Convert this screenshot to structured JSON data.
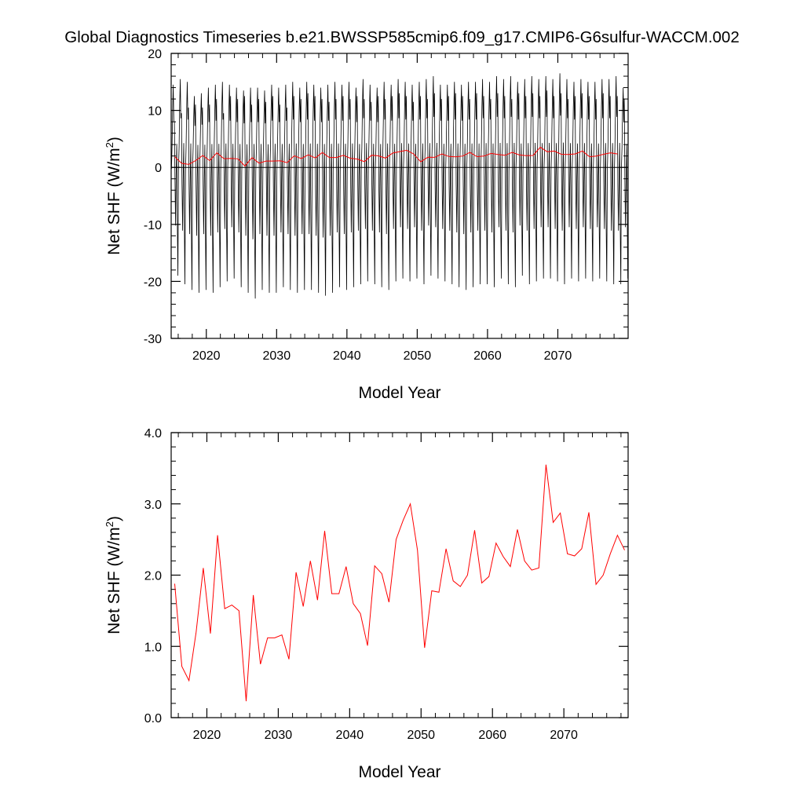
{
  "title": "Global Diagnostics Timeseries b.e21.BWSSP585cmip6.f09_g17.CMIP6-G6sulfur-WACCM.002",
  "chart_data": [
    {
      "type": "line",
      "xlabel": "Model Year",
      "ylabel": "Net SHF (W/m",
      "ylabel_sup": "2",
      "ylabel_close": ")",
      "xlim": [
        2015,
        2080
      ],
      "ylim": [
        -30,
        20
      ],
      "xticks": [
        2020,
        2030,
        2040,
        2050,
        2060,
        2070
      ],
      "yticks": [
        -30,
        -20,
        -10,
        0,
        10,
        20
      ],
      "ytick_labels": [
        "-30",
        "-20",
        "-10",
        "0",
        "10",
        "20"
      ],
      "zero_line": true,
      "grid": false,
      "series": [
        {
          "kind": "monthly",
          "color": "#000000",
          "start_year": 2015,
          "years": 65,
          "summer_peaks": [
            14.5,
            15.5,
            15.0,
            12.5,
            13.0,
            14.0,
            14.5,
            15.0,
            14.5,
            14.0,
            13.5,
            14.0,
            14.0,
            13.5,
            14.5,
            14.0,
            14.5,
            15.0,
            14.0,
            15.0,
            14.5,
            14.0,
            14.5,
            15.0,
            14.5,
            15.0,
            14.0,
            15.5,
            14.5,
            14.0,
            15.0,
            14.5,
            15.5,
            15.0,
            14.5,
            15.0,
            15.5,
            16.0,
            14.5,
            14.5,
            15.0,
            14.5,
            15.0,
            15.0,
            15.5,
            15.0,
            16.0,
            15.5,
            16.0,
            15.0,
            15.5,
            16.0,
            15.5,
            16.0,
            15.5,
            16.5,
            15.5,
            15.0,
            15.5,
            15.0,
            15.0,
            15.5,
            15.5,
            16.0,
            14.0
          ],
          "winter_troughs": [
            -19.0,
            -20.5,
            -21.5,
            -22.0,
            -21.5,
            -22.0,
            -21.0,
            -20.0,
            -19.5,
            -21.0,
            -22.0,
            -23.0,
            -21.5,
            -22.0,
            -22.0,
            -21.0,
            -21.5,
            -22.0,
            -21.5,
            -21.5,
            -22.0,
            -22.5,
            -22.0,
            -21.0,
            -21.5,
            -21.0,
            -20.5,
            -20.0,
            -20.5,
            -21.0,
            -21.5,
            -20.0,
            -19.5,
            -20.0,
            -19.5,
            -20.5,
            -19.0,
            -19.5,
            -20.0,
            -20.5,
            -21.0,
            -21.5,
            -21.0,
            -20.5,
            -20.5,
            -21.0,
            -19.5,
            -20.5,
            -21.0,
            -19.0,
            -20.5,
            -20.0,
            -19.5,
            -19.5,
            -20.0,
            -20.5,
            -19.5,
            -20.0,
            -19.5,
            -20.0,
            -19.5,
            -20.0,
            -20.5,
            -20.5,
            -19.5
          ],
          "secondary_peaks": [
            8.0,
            9.5,
            10.5,
            11.0,
            10.5,
            11.0,
            12.0,
            9.5,
            12.5,
            12.0,
            12.5,
            11.0,
            12.0,
            11.5,
            12.5,
            11.0,
            10.5,
            12.5,
            12.0,
            13.0,
            12.5,
            12.0,
            11.5,
            12.0,
            12.5,
            12.0,
            12.5,
            12.0,
            11.5,
            12.5,
            12.0,
            12.5,
            13.0,
            12.5,
            11.5,
            12.5,
            12.0,
            13.0,
            12.0,
            12.5,
            13.0,
            12.5,
            12.0,
            13.0,
            12.5,
            12.0,
            13.0,
            12.5,
            12.0,
            13.0,
            12.5,
            13.0,
            12.5,
            13.5,
            12.5,
            13.0,
            12.0,
            12.5,
            13.0,
            12.5,
            12.0,
            13.0,
            12.5,
            12.5,
            12.0
          ]
        },
        {
          "kind": "annual",
          "color": "#ff0000",
          "x": [
            2015.5,
            2016.5,
            2017.5,
            2018.5,
            2019.5,
            2020.5,
            2021.5,
            2022.5,
            2023.5,
            2024.5,
            2025.5,
            2026.5,
            2027.5,
            2028.5,
            2029.5,
            2030.5,
            2031.5,
            2032.5,
            2033.5,
            2034.5,
            2035.5,
            2036.5,
            2037.5,
            2038.5,
            2039.5,
            2040.5,
            2041.5,
            2042.5,
            2043.5,
            2044.5,
            2045.5,
            2046.5,
            2047.5,
            2048.5,
            2049.5,
            2050.5,
            2051.5,
            2052.5,
            2053.5,
            2054.5,
            2055.5,
            2056.5,
            2057.5,
            2058.5,
            2059.5,
            2060.5,
            2061.5,
            2062.5,
            2063.5,
            2064.5,
            2065.5,
            2066.5,
            2067.5,
            2068.5,
            2069.5,
            2070.5,
            2071.5,
            2072.5,
            2073.5,
            2074.5,
            2075.5,
            2076.5,
            2077.5,
            2078.5
          ],
          "values": [
            1.88,
            0.72,
            0.52,
            1.2,
            2.1,
            1.18,
            2.56,
            1.53,
            1.58,
            1.5,
            0.23,
            1.72,
            0.75,
            1.12,
            1.12,
            1.16,
            0.82,
            2.04,
            1.56,
            2.2,
            1.65,
            2.62,
            1.74,
            1.74,
            2.12,
            1.6,
            1.46,
            1.01,
            2.13,
            2.02,
            1.62,
            2.5,
            2.77,
            3.0,
            2.35,
            0.98,
            1.78,
            1.76,
            2.37,
            1.92,
            1.84,
            2.0,
            2.63,
            1.89,
            1.98,
            2.45,
            2.26,
            2.12,
            2.64,
            2.2,
            2.07,
            2.1,
            3.55,
            2.74,
            2.87,
            2.3,
            2.27,
            2.37,
            2.88,
            1.87,
            2.0,
            2.3,
            2.56,
            2.35
          ]
        }
      ]
    },
    {
      "type": "line",
      "xlabel": "Model Year",
      "ylabel": "Net SHF (W/m",
      "ylabel_sup": "2",
      "ylabel_close": ")",
      "xlim": [
        2015,
        2079
      ],
      "ylim": [
        0.0,
        4.0
      ],
      "xticks": [
        2020,
        2030,
        2040,
        2050,
        2060,
        2070
      ],
      "yticks": [
        0.0,
        1.0,
        2.0,
        3.0,
        4.0
      ],
      "ytick_labels": [
        "0.0",
        "1.0",
        "2.0",
        "3.0",
        "4.0"
      ],
      "grid": false,
      "series": [
        {
          "kind": "annual",
          "color": "#ff0000",
          "x": [
            2015.5,
            2016.5,
            2017.5,
            2018.5,
            2019.5,
            2020.5,
            2021.5,
            2022.5,
            2023.5,
            2024.5,
            2025.5,
            2026.5,
            2027.5,
            2028.5,
            2029.5,
            2030.5,
            2031.5,
            2032.5,
            2033.5,
            2034.5,
            2035.5,
            2036.5,
            2037.5,
            2038.5,
            2039.5,
            2040.5,
            2041.5,
            2042.5,
            2043.5,
            2044.5,
            2045.5,
            2046.5,
            2047.5,
            2048.5,
            2049.5,
            2050.5,
            2051.5,
            2052.5,
            2053.5,
            2054.5,
            2055.5,
            2056.5,
            2057.5,
            2058.5,
            2059.5,
            2060.5,
            2061.5,
            2062.5,
            2063.5,
            2064.5,
            2065.5,
            2066.5,
            2067.5,
            2068.5,
            2069.5,
            2070.5,
            2071.5,
            2072.5,
            2073.5,
            2074.5,
            2075.5,
            2076.5,
            2077.5,
            2078.5
          ],
          "values": [
            1.88,
            0.72,
            0.52,
            1.2,
            2.1,
            1.18,
            2.56,
            1.53,
            1.58,
            1.5,
            0.23,
            1.72,
            0.75,
            1.12,
            1.12,
            1.16,
            0.82,
            2.04,
            1.56,
            2.2,
            1.65,
            2.62,
            1.74,
            1.74,
            2.12,
            1.6,
            1.46,
            1.01,
            2.13,
            2.02,
            1.62,
            2.5,
            2.77,
            3.0,
            2.35,
            0.98,
            1.78,
            1.76,
            2.37,
            1.92,
            1.84,
            2.0,
            2.63,
            1.89,
            1.98,
            2.45,
            2.26,
            2.12,
            2.64,
            2.2,
            2.07,
            2.1,
            3.55,
            2.74,
            2.87,
            2.3,
            2.27,
            2.37,
            2.88,
            1.87,
            2.0,
            2.3,
            2.56,
            2.35
          ]
        }
      ]
    }
  ]
}
